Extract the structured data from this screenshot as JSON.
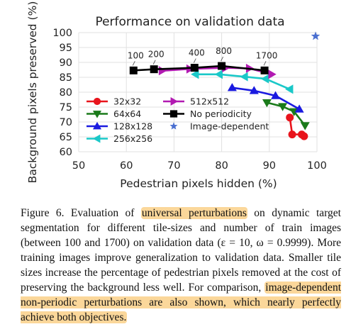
{
  "chart_data": {
    "type": "line",
    "title": "Performance on validation data",
    "xlabel": "Pedestrian pixels hidden (%)",
    "ylabel": "Background pixels preserved (%)",
    "xlim": [
      50,
      100
    ],
    "ylim": [
      60,
      100
    ],
    "xticks": [
      50,
      60,
      70,
      80,
      90,
      100
    ],
    "yticks": [
      60,
      65,
      70,
      75,
      80,
      85,
      90,
      95,
      100
    ],
    "grid": true,
    "legend_position": "bottom-left",
    "series": [
      {
        "name": "32x32",
        "color": "#e8141c",
        "marker": "circle",
        "x": [
          94.3,
          94.8,
          96.8,
          97.3
        ],
        "y": [
          71.5,
          65.8,
          65.8,
          65.2
        ]
      },
      {
        "name": "64x64",
        "color": "#1a7a1a",
        "marker": "triangle-down",
        "x": [
          89.5,
          92.8,
          95.2,
          97.5
        ],
        "y": [
          76.5,
          75.2,
          73.5,
          68.8
        ]
      },
      {
        "name": "128x128",
        "color": "#1a1ae0",
        "marker": "triangle-up",
        "x": [
          82.2,
          86.8,
          91.3,
          96.3
        ],
        "y": [
          81.5,
          80.5,
          78.8,
          74.3
        ]
      },
      {
        "name": "256x256",
        "color": "#1ac8c8",
        "marker": "triangle-left",
        "x": [
          74.5,
          79.5,
          84.8,
          89.2,
          94.3
        ],
        "y": [
          86.0,
          86.0,
          85.2,
          84.5,
          81.0
        ]
      },
      {
        "name": "512x512",
        "color": "#b21ab2",
        "marker": "triangle-right",
        "x": [
          67.5,
          73.3,
          80.8,
          85.8,
          90.5
        ],
        "y": [
          87.2,
          87.8,
          88.2,
          88.0,
          86.0
        ]
      },
      {
        "name": "No periodicity",
        "color": "#000000",
        "marker": "square",
        "x": [
          61.5,
          65.8,
          74.3,
          80.0,
          89.0
        ],
        "y": [
          87.3,
          87.7,
          88.2,
          88.8,
          87.3
        ]
      },
      {
        "name": "Image-dependent",
        "color": "#4a6fd0",
        "marker": "star",
        "line": false,
        "x": [
          99.7
        ],
        "y": [
          98.8
        ]
      }
    ],
    "annotations": [
      {
        "text": "100",
        "target_x": 61.5,
        "target_y": 87.3
      },
      {
        "text": "200",
        "target_x": 65.8,
        "target_y": 87.7
      },
      {
        "text": "400",
        "target_x": 74.3,
        "target_y": 88.2
      },
      {
        "text": "800",
        "target_x": 80.0,
        "target_y": 88.8
      },
      {
        "text": "1700",
        "target_x": 89.0,
        "target_y": 87.3
      }
    ]
  },
  "caption": {
    "lead": "Figure 6. Evaluation of ",
    "highlight_1": "universal perturbations",
    "mid": " on dynamic target segmentation for different tile-sizes and number of train images (between 100 and 1700) on validation data (ε = 10, ω = 0.9999). More training images improve generalization to validation data. Smaller tile sizes increase the percentage of pedestrian pixels removed at the cost of preserving the background less well. For comparison, ",
    "highlight_2": "image-dependent non-periodic perturbations are also shown, which nearly perfectly achieve both objectives."
  },
  "colors": {
    "highlight": "#fbd79a",
    "grid": "#e0e0e0"
  }
}
